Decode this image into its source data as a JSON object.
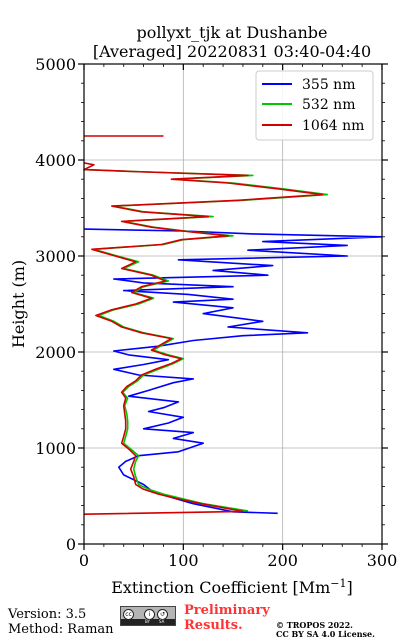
{
  "chart_data": {
    "type": "line",
    "title": "pollyxt_tjk at Dushanbe",
    "subtitle": "[Averaged] 20220831 03:40-04:40",
    "xlabel": "Extinction Coefficient [Mm",
    "xlabel_exponent": "−1",
    "xlabel_suffix": "]",
    "ylabel": "Height (m)",
    "xlim": [
      0,
      300
    ],
    "ylim": [
      0,
      5000
    ],
    "xticks": [
      0,
      100,
      200,
      300
    ],
    "yticks": [
      0,
      1000,
      2000,
      3000,
      4000,
      5000
    ],
    "xticklabels": [
      "0",
      "100",
      "200",
      "300"
    ],
    "yticklabels": [
      "0",
      "1000",
      "2000",
      "3000",
      "4000",
      "5000"
    ],
    "grid": true,
    "legend_position": "top-right",
    "series": [
      {
        "name": "355 nm",
        "color": "#0000ff",
        "points": [
          [
            195,
            320
          ],
          [
            150,
            335
          ],
          [
            110,
            420
          ],
          [
            70,
            540
          ],
          [
            60,
            620
          ],
          [
            40,
            720
          ],
          [
            35,
            800
          ],
          [
            42,
            860
          ],
          [
            55,
            920
          ],
          [
            95,
            960
          ],
          [
            120,
            1050
          ],
          [
            90,
            1100
          ],
          [
            110,
            1160
          ],
          [
            60,
            1200
          ],
          [
            85,
            1260
          ],
          [
            100,
            1320
          ],
          [
            65,
            1380
          ],
          [
            80,
            1420
          ],
          [
            95,
            1480
          ],
          [
            45,
            1540
          ],
          [
            65,
            1600
          ],
          [
            90,
            1680
          ],
          [
            110,
            1720
          ],
          [
            55,
            1760
          ],
          [
            30,
            1820
          ],
          [
            60,
            1870
          ],
          [
            85,
            1920
          ],
          [
            45,
            1970
          ],
          [
            30,
            2010
          ],
          [
            75,
            2060
          ],
          [
            110,
            2120
          ],
          [
            160,
            2170
          ],
          [
            225,
            2200
          ],
          [
            145,
            2260
          ],
          [
            180,
            2320
          ],
          [
            120,
            2400
          ],
          [
            150,
            2460
          ],
          [
            90,
            2520
          ],
          [
            150,
            2550
          ],
          [
            105,
            2600
          ],
          [
            40,
            2640
          ],
          [
            150,
            2680
          ],
          [
            60,
            2720
          ],
          [
            30,
            2760
          ],
          [
            185,
            2800
          ],
          [
            130,
            2850
          ],
          [
            190,
            2900
          ],
          [
            95,
            2960
          ],
          [
            265,
            3000
          ],
          [
            165,
            3060
          ],
          [
            265,
            3110
          ],
          [
            180,
            3150
          ],
          [
            300,
            3200
          ],
          [
            170,
            3230
          ],
          [
            100,
            3260
          ],
          [
            0,
            3280
          ]
        ]
      },
      {
        "name": "532 nm",
        "color": "#00c800",
        "points": [
          [
            165,
            345
          ],
          [
            120,
            420
          ],
          [
            100,
            470
          ],
          [
            80,
            520
          ],
          [
            65,
            570
          ],
          [
            55,
            620
          ],
          [
            52,
            700
          ],
          [
            50,
            780
          ],
          [
            52,
            860
          ],
          [
            55,
            920
          ],
          [
            48,
            980
          ],
          [
            40,
            1050
          ],
          [
            42,
            1120
          ],
          [
            44,
            1200
          ],
          [
            44,
            1280
          ],
          [
            43,
            1360
          ],
          [
            41,
            1440
          ],
          [
            44,
            1520
          ],
          [
            39,
            1580
          ],
          [
            45,
            1640
          ],
          [
            54,
            1700
          ],
          [
            60,
            1760
          ],
          [
            75,
            1820
          ],
          [
            90,
            1880
          ],
          [
            100,
            1930
          ],
          [
            85,
            1970
          ],
          [
            70,
            2020
          ],
          [
            80,
            2080
          ],
          [
            90,
            2140
          ],
          [
            60,
            2200
          ],
          [
            40,
            2260
          ],
          [
            30,
            2320
          ],
          [
            15,
            2380
          ],
          [
            30,
            2440
          ],
          [
            55,
            2500
          ],
          [
            70,
            2560
          ],
          [
            50,
            2620
          ],
          [
            60,
            2680
          ],
          [
            85,
            2740
          ],
          [
            70,
            2800
          ],
          [
            40,
            2870
          ],
          [
            55,
            2940
          ],
          [
            30,
            3010
          ],
          [
            10,
            3070
          ],
          [
            80,
            3120
          ],
          [
            100,
            3170
          ],
          [
            150,
            3210
          ],
          [
            110,
            3250
          ],
          [
            70,
            3300
          ],
          [
            40,
            3360
          ],
          [
            130,
            3410
          ],
          [
            60,
            3460
          ],
          [
            30,
            3520
          ],
          [
            160,
            3580
          ],
          [
            245,
            3640
          ],
          [
            200,
            3700
          ],
          [
            150,
            3760
          ],
          [
            90,
            3800
          ],
          [
            170,
            3840
          ],
          [
            50,
            3880
          ],
          [
            0,
            3900
          ]
        ]
      },
      {
        "name": "1064 nm",
        "color": "#d20000",
        "points": [
          [
            0,
            310
          ],
          [
            160,
            340
          ],
          [
            118,
            420
          ],
          [
            95,
            470
          ],
          [
            75,
            520
          ],
          [
            60,
            570
          ],
          [
            52,
            620
          ],
          [
            50,
            700
          ],
          [
            47,
            780
          ],
          [
            50,
            860
          ],
          [
            52,
            920
          ],
          [
            46,
            980
          ],
          [
            38,
            1050
          ],
          [
            40,
            1120
          ],
          [
            42,
            1200
          ],
          [
            42,
            1280
          ],
          [
            41,
            1360
          ],
          [
            40,
            1440
          ],
          [
            42,
            1520
          ],
          [
            38,
            1580
          ],
          [
            43,
            1640
          ],
          [
            52,
            1700
          ],
          [
            58,
            1760
          ],
          [
            72,
            1820
          ],
          [
            88,
            1880
          ],
          [
            98,
            1930
          ],
          [
            82,
            1970
          ],
          [
            68,
            2020
          ],
          [
            78,
            2080
          ],
          [
            88,
            2140
          ],
          [
            58,
            2200
          ],
          [
            38,
            2260
          ],
          [
            28,
            2320
          ],
          [
            12,
            2380
          ],
          [
            28,
            2440
          ],
          [
            52,
            2500
          ],
          [
            68,
            2560
          ],
          [
            48,
            2620
          ],
          [
            58,
            2680
          ],
          [
            82,
            2740
          ],
          [
            68,
            2800
          ],
          [
            38,
            2870
          ],
          [
            52,
            2940
          ],
          [
            28,
            3010
          ],
          [
            8,
            3070
          ],
          [
            78,
            3120
          ],
          [
            98,
            3170
          ],
          [
            145,
            3210
          ],
          [
            108,
            3250
          ],
          [
            68,
            3300
          ],
          [
            38,
            3360
          ],
          [
            125,
            3410
          ],
          [
            58,
            3460
          ],
          [
            28,
            3520
          ],
          [
            155,
            3580
          ],
          [
            240,
            3640
          ],
          [
            195,
            3700
          ],
          [
            145,
            3760
          ],
          [
            88,
            3800
          ],
          [
            165,
            3840
          ],
          [
            48,
            3880
          ],
          [
            0,
            3900
          ],
          [
            10,
            3950
          ],
          [
            0,
            3970
          ]
        ]
      },
      {
        "name": "",
        "color": "#d20000",
        "points": [
          [
            0,
            4250
          ],
          [
            80,
            4250
          ]
        ]
      }
    ]
  },
  "legend": [
    {
      "label": "355 nm",
      "color": "#0000ff"
    },
    {
      "label": "532 nm",
      "color": "#00c800"
    },
    {
      "label": "1064 nm",
      "color": "#d20000"
    }
  ],
  "footer": {
    "version": "Version: 3.5",
    "method": "Method: Raman",
    "license_badge_left": "BY",
    "license_badge_right": "SA",
    "preliminary_line1": "Preliminary",
    "preliminary_line2": "Results.",
    "copyright_line1": "© TROPOS 2022.",
    "copyright_line2": "CC BY SA 4.0 License."
  }
}
